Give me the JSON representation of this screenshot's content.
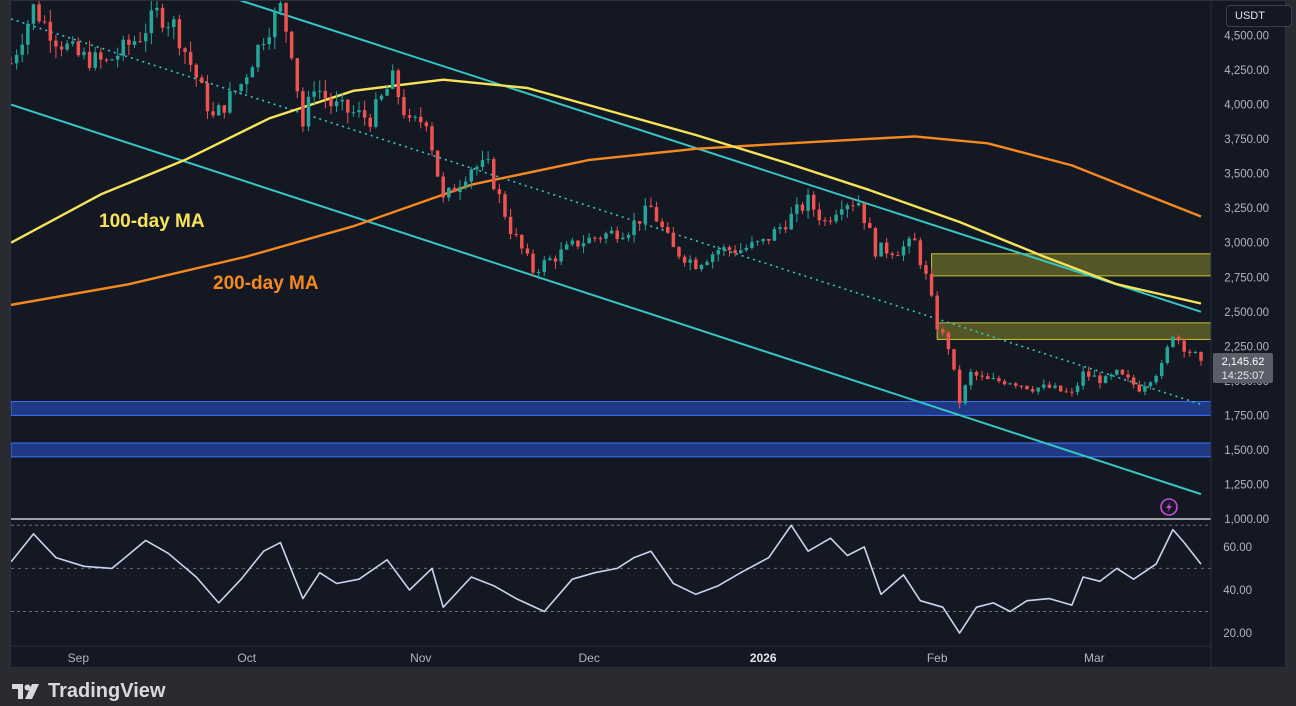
{
  "currency": "USDT",
  "brand": "TradingView",
  "price_label": {
    "price": "2,145.62",
    "countdown": "14:25:07"
  },
  "annotations": {
    "ma100": "100-day MA",
    "ma200": "200-day MA"
  },
  "colors": {
    "bg": "#141823",
    "up": "#26a69a",
    "down": "#ef5350",
    "ma100": "#f7e35a",
    "ma200": "#f5891f",
    "channel": "#36c6c3",
    "zone_supply": "#8a8a28",
    "zone_demand": "#2a56d8",
    "rsi": "#c8d4f0",
    "alert": "#c94bd6"
  },
  "icons": {
    "alert": "lightning-alert-icon",
    "logo": "tradingview-logo-icon"
  },
  "chart_data": [
    {
      "type": "candlestick",
      "pair_quote": "USDT",
      "ylim": [
        1000,
        4750
      ],
      "y_ticks": [
        1000,
        1250,
        1500,
        1750,
        2000,
        2250,
        2500,
        2750,
        3000,
        3250,
        3500,
        3750,
        4000,
        4250,
        4500
      ],
      "y_tick_labels": [
        "1,000.00",
        "1,250.00",
        "1,500.00",
        "1,750.00",
        "2,000.00",
        "2,250.00",
        "2,500.00",
        "2,750.00",
        "3,000.00",
        "3,250.00",
        "3,500.00",
        "3,750.00",
        "4,000.00",
        "4,250.00",
        "4,500.00"
      ],
      "x_tick_labels": [
        "Sep",
        "Oct",
        "Nov",
        "Dec",
        "2026",
        "Feb",
        "Mar"
      ],
      "x_tick_dates": [
        "2025-09-01",
        "2025-10-01",
        "2025-11-01",
        "2025-12-01",
        "2026-01-01",
        "2026-02-01",
        "2026-03-01"
      ],
      "date_range": [
        "2025-08-20",
        "2026-03-20"
      ],
      "close_path": [
        [
          "2025-08-20",
          4300
        ],
        [
          "2025-08-24",
          4700
        ],
        [
          "2025-08-28",
          4480
        ],
        [
          "2025-09-01",
          4350
        ],
        [
          "2025-09-06",
          4300
        ],
        [
          "2025-09-12",
          4500
        ],
        [
          "2025-09-15",
          4660
        ],
        [
          "2025-09-18",
          4580
        ],
        [
          "2025-09-22",
          4200
        ],
        [
          "2025-09-25",
          3900
        ],
        [
          "2025-09-30",
          4150
        ],
        [
          "2025-10-04",
          4500
        ],
        [
          "2025-10-07",
          4700
        ],
        [
          "2025-10-09",
          4400
        ],
        [
          "2025-10-11",
          3850
        ],
        [
          "2025-10-13",
          4150
        ],
        [
          "2025-10-16",
          4000
        ],
        [
          "2025-10-19",
          3950
        ],
        [
          "2025-10-23",
          3900
        ],
        [
          "2025-10-27",
          4180
        ],
        [
          "2025-10-30",
          3850
        ],
        [
          "2025-11-02",
          3900
        ],
        [
          "2025-11-05",
          3300
        ],
        [
          "2025-11-10",
          3550
        ],
        [
          "2025-11-13",
          3550
        ],
        [
          "2025-11-17",
          3100
        ],
        [
          "2025-11-21",
          2800
        ],
        [
          "2025-11-25",
          2900
        ],
        [
          "2025-11-29",
          3000
        ],
        [
          "2025-12-03",
          3050
        ],
        [
          "2025-12-08",
          3100
        ],
        [
          "2025-12-12",
          3250
        ],
        [
          "2025-12-16",
          2950
        ],
        [
          "2025-12-20",
          2850
        ],
        [
          "2025-12-24",
          2950
        ],
        [
          "2025-12-28",
          2950
        ],
        [
          "2026-01-01",
          3000
        ],
        [
          "2026-01-05",
          3150
        ],
        [
          "2026-01-09",
          3300
        ],
        [
          "2026-01-12",
          3150
        ],
        [
          "2026-01-15",
          3300
        ],
        [
          "2026-01-18",
          3300
        ],
        [
          "2026-01-21",
          2950
        ],
        [
          "2026-01-25",
          2950
        ],
        [
          "2026-01-28",
          3000
        ],
        [
          "2026-01-30",
          2750
        ],
        [
          "2026-02-01",
          2400
        ],
        [
          "2026-02-03",
          2250
        ],
        [
          "2026-02-05",
          1850
        ],
        [
          "2026-02-07",
          2050
        ],
        [
          "2026-02-10",
          2000
        ],
        [
          "2026-02-14",
          2000
        ],
        [
          "2026-02-18",
          1950
        ],
        [
          "2026-02-21",
          1950
        ],
        [
          "2026-02-25",
          1900
        ],
        [
          "2026-02-27",
          2050
        ],
        [
          "2026-03-03",
          2000
        ],
        [
          "2026-03-05",
          2050
        ],
        [
          "2026-03-09",
          1950
        ],
        [
          "2026-03-13",
          2100
        ],
        [
          "2026-03-15",
          2350
        ],
        [
          "2026-03-17",
          2250
        ],
        [
          "2026-03-20",
          2145.62
        ]
      ],
      "ma100": [
        [
          "2025-08-20",
          3000
        ],
        [
          "2025-09-05",
          3350
        ],
        [
          "2025-09-20",
          3600
        ],
        [
          "2025-10-05",
          3900
        ],
        [
          "2025-10-20",
          4100
        ],
        [
          "2025-11-05",
          4180
        ],
        [
          "2025-11-20",
          4120
        ],
        [
          "2025-12-05",
          3950
        ],
        [
          "2025-12-20",
          3780
        ],
        [
          "2026-01-05",
          3580
        ],
        [
          "2026-01-20",
          3380
        ],
        [
          "2026-02-05",
          3150
        ],
        [
          "2026-02-20",
          2900
        ],
        [
          "2026-03-05",
          2700
        ],
        [
          "2026-03-20",
          2560
        ]
      ],
      "ma200": [
        [
          "2025-08-20",
          2550
        ],
        [
          "2025-09-10",
          2700
        ],
        [
          "2025-10-01",
          2900
        ],
        [
          "2025-10-20",
          3120
        ],
        [
          "2025-11-10",
          3420
        ],
        [
          "2025-12-01",
          3600
        ],
        [
          "2025-12-20",
          3680
        ],
        [
          "2026-01-10",
          3730
        ],
        [
          "2026-01-28",
          3770
        ],
        [
          "2026-02-10",
          3720
        ],
        [
          "2026-02-25",
          3560
        ],
        [
          "2026-03-10",
          3350
        ],
        [
          "2026-03-20",
          3190
        ]
      ],
      "trendlines": [
        {
          "name": "channel-upper",
          "style": "solid",
          "from": [
            "2025-09-15",
            4950
          ],
          "to": [
            "2026-03-20",
            2500
          ]
        },
        {
          "name": "channel-lower",
          "style": "solid",
          "from": [
            "2025-08-20",
            4000
          ],
          "to": [
            "2026-03-20",
            1180
          ]
        },
        {
          "name": "dotted-trend",
          "style": "dotted",
          "from": [
            "2025-08-20",
            4620
          ],
          "to": [
            "2026-03-20",
            1830
          ]
        }
      ],
      "zones": [
        {
          "name": "supply-zone-upper",
          "low": 2760,
          "high": 2920,
          "from": "2026-01-31",
          "kind": "supply"
        },
        {
          "name": "supply-zone-lower",
          "low": 2300,
          "high": 2420,
          "from": "2026-02-01",
          "kind": "supply"
        },
        {
          "name": "demand-zone-upper",
          "low": 1750,
          "high": 1850,
          "from": "2025-08-20",
          "kind": "demand"
        },
        {
          "name": "demand-zone-lower",
          "low": 1450,
          "high": 1550,
          "from": "2025-08-20",
          "kind": "demand"
        }
      ],
      "last_price": 2145.62
    },
    {
      "type": "line",
      "name": "RSI",
      "ylim": [
        14,
        72
      ],
      "y_ticks": [
        20,
        40,
        60
      ],
      "y_tick_labels": [
        "20.00",
        "40.00",
        "60.00"
      ],
      "levels": [
        30,
        50,
        70
      ],
      "points": [
        [
          "2025-08-20",
          53
        ],
        [
          "2025-08-24",
          66
        ],
        [
          "2025-08-28",
          55
        ],
        [
          "2025-09-02",
          51
        ],
        [
          "2025-09-07",
          50
        ],
        [
          "2025-09-13",
          63
        ],
        [
          "2025-09-17",
          57
        ],
        [
          "2025-09-22",
          46
        ],
        [
          "2025-09-26",
          34
        ],
        [
          "2025-09-30",
          45
        ],
        [
          "2025-10-04",
          58
        ],
        [
          "2025-10-07",
          62
        ],
        [
          "2025-10-11",
          36
        ],
        [
          "2025-10-14",
          48
        ],
        [
          "2025-10-17",
          43
        ],
        [
          "2025-10-21",
          45
        ],
        [
          "2025-10-26",
          54
        ],
        [
          "2025-10-30",
          40
        ],
        [
          "2025-11-03",
          50
        ],
        [
          "2025-11-05",
          32
        ],
        [
          "2025-11-10",
          46
        ],
        [
          "2025-11-14",
          42
        ],
        [
          "2025-11-18",
          36
        ],
        [
          "2025-11-23",
          30
        ],
        [
          "2025-11-28",
          45
        ],
        [
          "2025-12-02",
          48
        ],
        [
          "2025-12-06",
          50
        ],
        [
          "2025-12-09",
          55
        ],
        [
          "2025-12-12",
          58
        ],
        [
          "2025-12-16",
          43
        ],
        [
          "2025-12-20",
          38
        ],
        [
          "2025-12-24",
          42
        ],
        [
          "2025-12-28",
          48
        ],
        [
          "2026-01-02",
          55
        ],
        [
          "2026-01-06",
          70
        ],
        [
          "2026-01-09",
          58
        ],
        [
          "2026-01-13",
          64
        ],
        [
          "2026-01-16",
          56
        ],
        [
          "2026-01-19",
          60
        ],
        [
          "2026-01-22",
          38
        ],
        [
          "2026-01-26",
          47
        ],
        [
          "2026-01-29",
          35
        ],
        [
          "2026-02-02",
          32
        ],
        [
          "2026-02-05",
          20
        ],
        [
          "2026-02-08",
          32
        ],
        [
          "2026-02-11",
          34
        ],
        [
          "2026-02-14",
          30
        ],
        [
          "2026-02-17",
          35
        ],
        [
          "2026-02-21",
          36
        ],
        [
          "2026-02-25",
          33
        ],
        [
          "2026-02-27",
          46
        ],
        [
          "2026-03-02",
          44
        ],
        [
          "2026-03-05",
          50
        ],
        [
          "2026-03-08",
          45
        ],
        [
          "2026-03-12",
          52
        ],
        [
          "2026-03-15",
          68
        ],
        [
          "2026-03-17",
          62
        ],
        [
          "2026-03-20",
          52
        ]
      ]
    }
  ]
}
